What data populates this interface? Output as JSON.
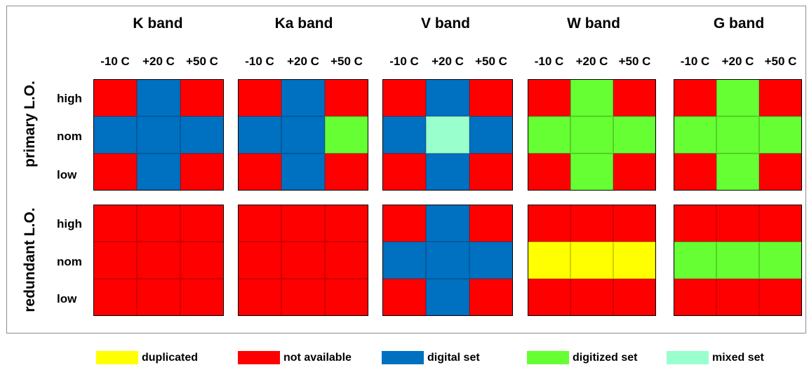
{
  "bands": [
    "K band",
    "Ka band",
    "V band",
    "W band",
    "G band"
  ],
  "temperatures": [
    "-10 C",
    "+20 C",
    "+50 C"
  ],
  "lo_groups": [
    "primary L.O.",
    "redundant L.O."
  ],
  "levels": [
    "high",
    "nom",
    "low"
  ],
  "colors": {
    "D": "#ffff00",
    "N": "#ff0000",
    "B": "#0070c0",
    "G": "#66ff33",
    "M": "#99ffcc"
  },
  "legend": [
    {
      "key": "D",
      "label": "duplicated"
    },
    {
      "key": "N",
      "label": "not available"
    },
    {
      "key": "B",
      "label": "digital set"
    },
    {
      "key": "G",
      "label": "digitized set"
    },
    {
      "key": "M",
      "label": "mixed set"
    }
  ],
  "matrix": {
    "primary L.O.": {
      "K band": [
        [
          "N",
          "B",
          "N"
        ],
        [
          "B",
          "B",
          "B"
        ],
        [
          "N",
          "B",
          "N"
        ]
      ],
      "Ka band": [
        [
          "N",
          "B",
          "N"
        ],
        [
          "B",
          "B",
          "G"
        ],
        [
          "N",
          "B",
          "N"
        ]
      ],
      "V band": [
        [
          "N",
          "B",
          "N"
        ],
        [
          "B",
          "M",
          "B"
        ],
        [
          "N",
          "B",
          "N"
        ]
      ],
      "W band": [
        [
          "N",
          "G",
          "N"
        ],
        [
          "G",
          "G",
          "G"
        ],
        [
          "N",
          "G",
          "N"
        ]
      ],
      "G band": [
        [
          "N",
          "G",
          "N"
        ],
        [
          "G",
          "G",
          "G"
        ],
        [
          "N",
          "G",
          "N"
        ]
      ]
    },
    "redundant L.O.": {
      "K band": [
        [
          "N",
          "N",
          "N"
        ],
        [
          "N",
          "N",
          "N"
        ],
        [
          "N",
          "N",
          "N"
        ]
      ],
      "Ka band": [
        [
          "N",
          "N",
          "N"
        ],
        [
          "N",
          "N",
          "N"
        ],
        [
          "N",
          "N",
          "N"
        ]
      ],
      "V band": [
        [
          "N",
          "B",
          "N"
        ],
        [
          "B",
          "B",
          "B"
        ],
        [
          "N",
          "B",
          "N"
        ]
      ],
      "W band": [
        [
          "N",
          "N",
          "N"
        ],
        [
          "D",
          "D",
          "D"
        ],
        [
          "N",
          "N",
          "N"
        ]
      ],
      "G band": [
        [
          "N",
          "N",
          "N"
        ],
        [
          "G",
          "G",
          "G"
        ],
        [
          "N",
          "N",
          "N"
        ]
      ]
    }
  }
}
